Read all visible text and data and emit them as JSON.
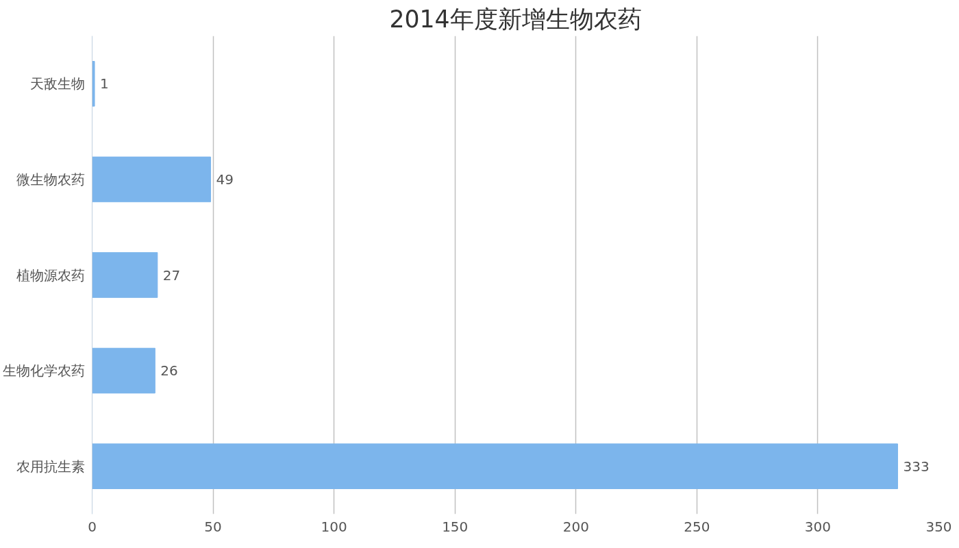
{
  "chart_data": {
    "type": "bar",
    "orientation": "horizontal",
    "title": "2014年度新增生物农药",
    "categories": [
      "天敌生物",
      "微生物农药",
      "植物源农药",
      "生物化学农药",
      "农用抗生素"
    ],
    "values": [
      1,
      49,
      27,
      26,
      333
    ],
    "color": "#7cb5ec",
    "xlim": [
      0,
      350
    ],
    "xticks": [
      0,
      50,
      100,
      150,
      200,
      250,
      300,
      350
    ],
    "grid": "x",
    "data_labels": true
  }
}
